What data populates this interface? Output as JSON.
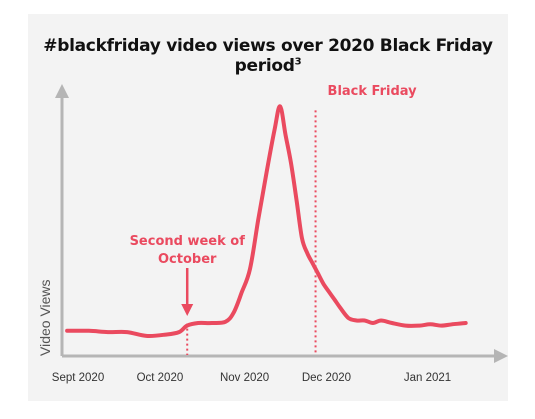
{
  "chart_data": {
    "type": "line",
    "title": "#blackfriday video views over 2020 Black Friday period",
    "title_superscript": "3",
    "ylabel": "Video Views",
    "xlabel": "",
    "x_tick_labels": [
      "Sept 2020",
      "Oct 2020",
      "Nov 2020",
      "Dec 2020",
      "Jan  2021"
    ],
    "x_axis_range": [
      "2020-09-01",
      "2021-01-20"
    ],
    "y_scale": "relative (no tick labels)",
    "ylim": [
      0,
      100
    ],
    "grid": false,
    "series": [
      {
        "color": "#ea4a5f",
        "x": [
          "2020-08-28",
          "2020-09-05",
          "2020-09-12",
          "2020-09-19",
          "2020-09-26",
          "2020-10-03",
          "2020-10-08",
          "2020-10-11",
          "2020-10-15",
          "2020-10-20",
          "2020-10-25",
          "2020-10-28",
          "2020-10-31",
          "2020-11-03",
          "2020-11-06",
          "2020-11-09",
          "2020-11-12",
          "2020-11-14",
          "2020-11-16",
          "2020-11-18",
          "2020-11-20",
          "2020-11-22",
          "2020-11-24",
          "2020-11-26",
          "2020-11-27",
          "2020-11-28",
          "2020-11-30",
          "2020-12-02",
          "2020-12-04",
          "2020-12-06",
          "2020-12-09",
          "2020-12-12",
          "2020-12-15",
          "2020-12-18",
          "2020-12-21",
          "2020-12-25",
          "2020-12-30",
          "2021-01-04",
          "2021-01-08",
          "2021-01-12",
          "2021-01-16",
          "2021-01-21"
        ],
        "y": [
          9,
          9,
          8.5,
          8.5,
          7,
          7.5,
          8.5,
          11,
          12,
          12,
          12.5,
          16,
          24,
          33,
          52,
          70,
          87,
          96,
          85,
          74,
          60,
          45,
          39,
          35,
          33,
          31,
          27,
          24,
          21,
          18,
          14,
          13,
          13,
          12,
          13,
          12,
          11,
          11,
          11.5,
          11,
          11.5,
          12
        ]
      }
    ],
    "annotations": [
      {
        "text": "Black Friday",
        "date": "2020-11-27",
        "style": "dotted vertical line"
      },
      {
        "text_lines": [
          "Second week of",
          "October"
        ],
        "date": "2020-10-11",
        "style": "arrow and dotted vertical line"
      }
    ]
  }
}
